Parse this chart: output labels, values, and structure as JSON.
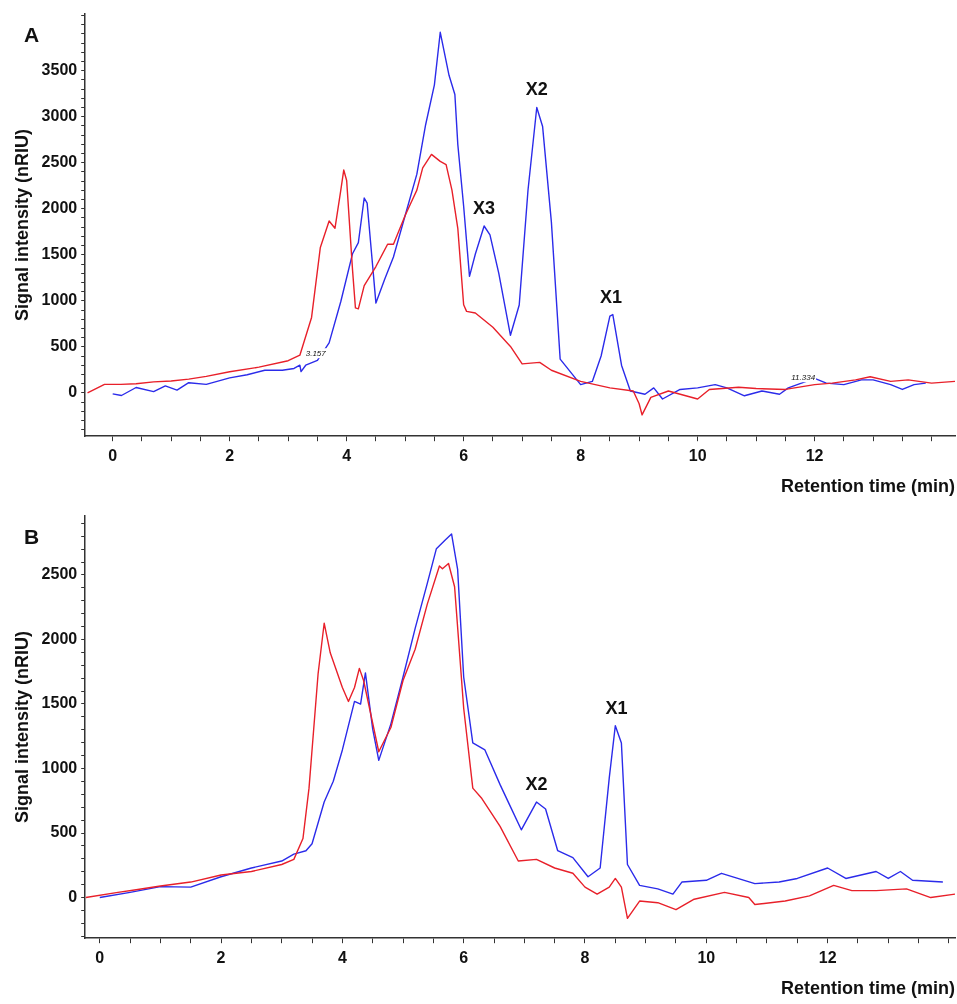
{
  "chart_data": [
    {
      "type": "line",
      "title": "A",
      "xlabel": "Retention time (min)",
      "ylabel": "Signal intensity (nRIU)",
      "xlim": [
        -0.47,
        14.4
      ],
      "ylim": [
        -470,
        4120
      ],
      "xticks": [
        0,
        {
          "value": 0.5,
          "label": null
        },
        {
          "value": 1,
          "label": null
        },
        {
          "value": 1.5,
          "label": null
        },
        2,
        {
          "value": 2.5,
          "label": null
        },
        {
          "value": 3,
          "label": null
        },
        {
          "value": 3.5,
          "label": null
        },
        4,
        {
          "value": 4.5,
          "label": null
        },
        {
          "value": 5,
          "label": null
        },
        {
          "value": 5.5,
          "label": null
        },
        6,
        {
          "value": 6.5,
          "label": null
        },
        {
          "value": 7,
          "label": null
        },
        {
          "value": 7.5,
          "label": null
        },
        8,
        {
          "value": 8.5,
          "label": null
        },
        {
          "value": 9,
          "label": null
        },
        {
          "value": 9.5,
          "label": null
        },
        10,
        {
          "value": 10.5,
          "label": null
        },
        {
          "value": 11,
          "label": null
        },
        {
          "value": 11.5,
          "label": null
        },
        12,
        {
          "value": 12.5,
          "label": null
        },
        {
          "value": 13,
          "label": null
        },
        {
          "value": 13.5,
          "label": null
        },
        {
          "value": 14,
          "label": null
        }
      ],
      "yticks": [
        {
          "value": -400,
          "label": null
        },
        {
          "value": -300,
          "label": null
        },
        {
          "value": -200,
          "label": null
        },
        {
          "value": -100,
          "label": null
        },
        0,
        {
          "value": 100,
          "label": null
        },
        {
          "value": 200,
          "label": null
        },
        {
          "value": 300,
          "label": null
        },
        {
          "value": 400,
          "label": null
        },
        500,
        {
          "value": 600,
          "label": null
        },
        {
          "value": 700,
          "label": null
        },
        {
          "value": 800,
          "label": null
        },
        {
          "value": 900,
          "label": null
        },
        1000,
        {
          "value": 1100,
          "label": null
        },
        {
          "value": 1200,
          "label": null
        },
        {
          "value": 1300,
          "label": null
        },
        {
          "value": 1400,
          "label": null
        },
        1500,
        {
          "value": 1600,
          "label": null
        },
        {
          "value": 1700,
          "label": null
        },
        {
          "value": 1800,
          "label": null
        },
        {
          "value": 1900,
          "label": null
        },
        2000,
        {
          "value": 2100,
          "label": null
        },
        {
          "value": 2200,
          "label": null
        },
        {
          "value": 2300,
          "label": null
        },
        {
          "value": 2400,
          "label": null
        },
        2500,
        {
          "value": 2600,
          "label": null
        },
        {
          "value": 2700,
          "label": null
        },
        {
          "value": 2800,
          "label": null
        },
        {
          "value": 2900,
          "label": null
        },
        3000,
        {
          "value": 3100,
          "label": null
        },
        {
          "value": 3200,
          "label": null
        },
        {
          "value": 3300,
          "label": null
        },
        {
          "value": 3400,
          "label": null
        },
        3500,
        {
          "value": 3600,
          "label": null
        },
        {
          "value": 3700,
          "label": null
        },
        {
          "value": 3800,
          "label": null
        },
        {
          "value": 3900,
          "label": null
        },
        {
          "value": 4000,
          "label": null
        },
        {
          "value": 4100,
          "label": null
        }
      ],
      "series": [
        {
          "color": "#e8202a",
          "x": [
            -0.43,
            -0.14,
            0.14,
            0.4,
            0.7,
            1.0,
            1.3,
            1.6,
            2.0,
            2.5,
            3.0,
            3.2,
            3.4,
            3.55,
            3.7,
            3.8,
            3.9,
            3.95,
            4.0,
            4.1,
            4.15,
            4.2,
            4.3,
            4.5,
            4.7,
            4.8,
            5.0,
            5.1,
            5.2,
            5.3,
            5.45,
            5.6,
            5.7,
            5.8,
            5.9,
            6.0,
            6.05,
            6.2,
            6.5,
            6.8,
            7.0,
            7.3,
            7.5,
            8.0,
            8.5,
            8.9,
            9.0,
            9.05,
            9.2,
            9.5,
            10.0,
            10.2,
            10.7,
            11.0,
            11.5,
            12.0,
            12.3,
            12.7,
            12.95,
            13.3,
            13.6,
            14.0,
            14.4
          ],
          "values": [
            0,
            93,
            93,
            100,
            120,
            130,
            150,
            180,
            230,
            280,
            350,
            410,
            820,
            1580,
            1868,
            1788,
            2203,
            2421,
            2307,
            1339,
            923,
            913,
            1166,
            1373,
            1615,
            1615,
            1927,
            2065,
            2203,
            2445,
            2591,
            2515,
            2480,
            2203,
            1788,
            958,
            886,
            868,
            713,
            505,
            315,
            332,
            246,
            125,
            55,
            21,
            -118,
            -239,
            -48,
            21,
            -66,
            38,
            62,
            48,
            38,
            90,
            107,
            142,
            176,
            125,
            142,
            107,
            125
          ]
        },
        {
          "color": "#2b2bea",
          "x": [
            0,
            0.15,
            0.4,
            0.7,
            0.9,
            1.1,
            1.3,
            1.6,
            2.0,
            2.3,
            2.6,
            2.9,
            3.1,
            3.2,
            3.22,
            3.3,
            3.5,
            3.7,
            3.9,
            4.1,
            4.2,
            4.3,
            4.35,
            4.45,
            4.5,
            4.65,
            4.8,
            5.0,
            5.2,
            5.35,
            5.5,
            5.6,
            5.75,
            5.85,
            5.9,
            6.0,
            6.1,
            6.2,
            6.35,
            6.45,
            6.6,
            6.8,
            6.95,
            7.1,
            7.25,
            7.35,
            7.5,
            7.65,
            8.0,
            8.2,
            8.35,
            8.5,
            8.55,
            8.7,
            8.85,
            9.1,
            9.25,
            9.4,
            9.7,
            10.0,
            10.3,
            10.5,
            10.8,
            11.1,
            11.4,
            11.55,
            12.0,
            12.2,
            12.5,
            12.8,
            13.0,
            13.3,
            13.5,
            13.7,
            13.9
          ],
          "values": [
            -10,
            -28,
            59,
            14,
            76,
            31,
            111,
            93,
            163,
            197,
            246,
            246,
            266,
            301,
            232,
            301,
            353,
            543,
            993,
            1512,
            1633,
            2117,
            2062,
            1339,
            976,
            1235,
            1477,
            1927,
            2376,
            2913,
            3346,
            3917,
            3450,
            3242,
            2700,
            2028,
            1266,
            1509,
            1813,
            1716,
            1301,
            626,
            955,
            2201,
            3100,
            2893,
            1855,
            367,
            90,
            125,
            401,
            834,
            851,
            298,
            21,
            -14,
            55,
            -66,
            38,
            55,
            90,
            55,
            -31,
            21,
            -14,
            55,
            159,
            107,
            90,
            142,
            142,
            90,
            38,
            90,
            107
          ]
        }
      ],
      "annotations": [
        {
          "text": "X3",
          "x": 6.35,
          "y": 1813
        },
        {
          "text": "X2",
          "x": 7.25,
          "y": 3100
        },
        {
          "text": "X1",
          "x": 8.52,
          "y": 851
        },
        {
          "text": "3.157",
          "x": 3.3,
          "y": 301
        },
        {
          "text": "11.334",
          "x": 11.6,
          "y": 40
        }
      ]
    },
    {
      "type": "line",
      "title": "B",
      "xlabel": "Retention time (min)",
      "ylabel": "Signal intensity (nRIU)",
      "xlim": [
        -0.24,
        14.1
      ],
      "ylim": [
        -315,
        2960
      ],
      "xticks": [
        0,
        {
          "value": 0.5,
          "label": null
        },
        {
          "value": 1,
          "label": null
        },
        {
          "value": 1.5,
          "label": null
        },
        2,
        {
          "value": 2.5,
          "label": null
        },
        {
          "value": 3,
          "label": null
        },
        {
          "value": 3.5,
          "label": null
        },
        4,
        {
          "value": 4.5,
          "label": null
        },
        {
          "value": 5,
          "label": null
        },
        {
          "value": 5.5,
          "label": null
        },
        6,
        {
          "value": 6.5,
          "label": null
        },
        {
          "value": 7,
          "label": null
        },
        {
          "value": 7.5,
          "label": null
        },
        8,
        {
          "value": 8.5,
          "label": null
        },
        {
          "value": 9,
          "label": null
        },
        {
          "value": 9.5,
          "label": null
        },
        10,
        {
          "value": 10.5,
          "label": null
        },
        {
          "value": 11,
          "label": null
        },
        {
          "value": 11.5,
          "label": null
        },
        12,
        {
          "value": 12.5,
          "label": null
        },
        {
          "value": 13,
          "label": null
        },
        {
          "value": 13.5,
          "label": null
        },
        {
          "value": 14,
          "label": null
        }
      ],
      "yticks": [
        {
          "value": -300,
          "label": null
        },
        {
          "value": -200,
          "label": null
        },
        {
          "value": -100,
          "label": null
        },
        0,
        {
          "value": 100,
          "label": null
        },
        {
          "value": 200,
          "label": null
        },
        {
          "value": 300,
          "label": null
        },
        {
          "value": 400,
          "label": null
        },
        500,
        {
          "value": 600,
          "label": null
        },
        {
          "value": 700,
          "label": null
        },
        {
          "value": 800,
          "label": null
        },
        {
          "value": 900,
          "label": null
        },
        1000,
        {
          "value": 1100,
          "label": null
        },
        {
          "value": 1200,
          "label": null
        },
        {
          "value": 1300,
          "label": null
        },
        {
          "value": 1400,
          "label": null
        },
        1500,
        {
          "value": 1600,
          "label": null
        },
        {
          "value": 1700,
          "label": null
        },
        {
          "value": 1800,
          "label": null
        },
        {
          "value": 1900,
          "label": null
        },
        2000,
        {
          "value": 2100,
          "label": null
        },
        {
          "value": 2200,
          "label": null
        },
        {
          "value": 2300,
          "label": null
        },
        {
          "value": 2400,
          "label": null
        },
        2500,
        {
          "value": 2600,
          "label": null
        },
        {
          "value": 2700,
          "label": null
        },
        {
          "value": 2800,
          "label": null
        },
        {
          "value": 2900,
          "label": null
        }
      ],
      "series": [
        {
          "color": "#e8202a",
          "x": [
            -0.23,
            0.3,
            0.6,
            1.0,
            1.5,
            2.0,
            2.5,
            3.0,
            3.2,
            3.35,
            3.45,
            3.6,
            3.7,
            3.8,
            4.0,
            4.1,
            4.2,
            4.28,
            4.35,
            4.6,
            4.8,
            5.0,
            5.2,
            5.4,
            5.6,
            5.65,
            5.75,
            5.85,
            6.0,
            6.15,
            6.3,
            6.6,
            6.9,
            7.2,
            7.5,
            7.8,
            8.0,
            8.2,
            8.4,
            8.5,
            8.6,
            8.7,
            8.9,
            9.2,
            9.5,
            9.8,
            10.3,
            10.7,
            10.8,
            11.3,
            11.7,
            12.1,
            12.4,
            12.8,
            13.3,
            13.7,
            14.1
          ],
          "values": [
            0,
            40,
            60,
            90,
            120,
            175,
            202,
            256,
            296,
            457,
            848,
            1736,
            2126,
            1897,
            1628,
            1520,
            1628,
            1776,
            1682,
            1130,
            1318,
            1682,
            1924,
            2274,
            2570,
            2548,
            2589,
            2409,
            1467,
            848,
            767,
            552,
            283,
            296,
            229,
            188,
            81,
            27,
            81,
            148,
            81,
            -161,
            -27,
            -40,
            -94,
            -13,
            40,
            0,
            -54,
            -27,
            13,
            94,
            54,
            54,
            67,
            0,
            27
          ]
        },
        {
          "color": "#2b2bea",
          "x": [
            0,
            0.5,
            1.0,
            1.5,
            2.0,
            2.5,
            3.0,
            3.2,
            3.4,
            3.5,
            3.7,
            3.85,
            4.0,
            4.2,
            4.3,
            4.38,
            4.5,
            4.6,
            4.8,
            5.0,
            5.2,
            5.4,
            5.55,
            5.7,
            5.8,
            5.9,
            6.0,
            6.15,
            6.35,
            6.6,
            6.95,
            7.2,
            7.35,
            7.55,
            7.8,
            8.05,
            8.25,
            8.4,
            8.5,
            8.6,
            8.7,
            8.9,
            9.2,
            9.45,
            9.6,
            10.0,
            10.25,
            10.8,
            11.2,
            11.5,
            12.0,
            12.3,
            12.8,
            13.0,
            13.2,
            13.4,
            13.9
          ],
          "values": [
            0,
            40,
            85,
            81,
            161,
            229,
            283,
            336,
            363,
            417,
            740,
            901,
            1144,
            1520,
            1499,
            1741,
            1305,
            1063,
            1346,
            1709,
            2086,
            2435,
            2704,
            2772,
            2818,
            2543,
            1709,
            1198,
            1144,
            875,
            525,
            740,
            686,
            363,
            309,
            161,
            229,
            928,
            1332,
            1198,
            256,
            94,
            67,
            27,
            121,
            134,
            188,
            108,
            121,
            148,
            229,
            148,
            202,
            148,
            202,
            134,
            121
          ]
        }
      ],
      "annotations": [
        {
          "text": "X2",
          "x": 7.2,
          "y": 740
        },
        {
          "text": "X1",
          "x": 8.52,
          "y": 1332
        }
      ]
    }
  ]
}
